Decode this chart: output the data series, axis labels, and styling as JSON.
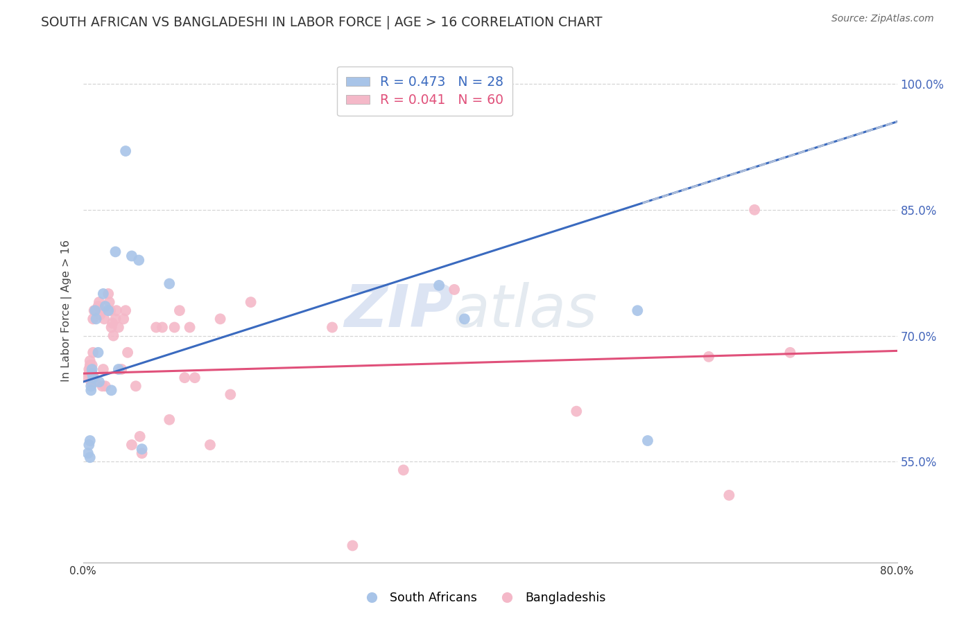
{
  "title": "SOUTH AFRICAN VS BANGLADESHI IN LABOR FORCE | AGE > 16 CORRELATION CHART",
  "source": "Source: ZipAtlas.com",
  "ylabel": "In Labor Force | Age > 16",
  "xlim": [
    0.0,
    0.8
  ],
  "ylim": [
    0.43,
    1.03
  ],
  "xticks": [
    0.0,
    0.2,
    0.4,
    0.6,
    0.8
  ],
  "xtick_labels": [
    "0.0%",
    "",
    "",
    "",
    "80.0%"
  ],
  "ytick_labels": [
    "55.0%",
    "70.0%",
    "85.0%",
    "100.0%"
  ],
  "yticks": [
    0.55,
    0.7,
    0.85,
    1.0
  ],
  "background_color": "#ffffff",
  "grid_color": "#cccccc",
  "watermark_zip": "ZIP",
  "watermark_atlas": "atlas",
  "legend_R1": "R = 0.473",
  "legend_N1": "N = 28",
  "legend_R2": "R = 0.041",
  "legend_N2": "N = 60",
  "blue_scatter_color": "#a8c4e8",
  "pink_scatter_color": "#f4b8c8",
  "blue_line_color": "#3a6abf",
  "pink_line_color": "#e0507a",
  "dashed_line_color": "#aabbd8",
  "right_tick_color": "#4466bb",
  "blue_line_x0": 0.0,
  "blue_line_y0": 0.645,
  "blue_line_x1": 0.8,
  "blue_line_y1": 0.955,
  "pink_line_x0": 0.0,
  "pink_line_y0": 0.655,
  "pink_line_x1": 0.8,
  "pink_line_y1": 0.682,
  "dash_line_x0": 0.55,
  "dash_line_y0": 0.858,
  "dash_line_x1": 0.8,
  "dash_line_y1": 0.955,
  "south_african_x": [
    0.005,
    0.006,
    0.007,
    0.007,
    0.008,
    0.008,
    0.009,
    0.009,
    0.01,
    0.012,
    0.013,
    0.015,
    0.016,
    0.02,
    0.022,
    0.025,
    0.028,
    0.032,
    0.035,
    0.042,
    0.048,
    0.055,
    0.058,
    0.085,
    0.35,
    0.375,
    0.545,
    0.555
  ],
  "south_african_y": [
    0.56,
    0.57,
    0.555,
    0.575,
    0.635,
    0.64,
    0.655,
    0.66,
    0.65,
    0.73,
    0.72,
    0.68,
    0.645,
    0.75,
    0.735,
    0.73,
    0.635,
    0.8,
    0.66,
    0.92,
    0.795,
    0.79,
    0.565,
    0.762,
    0.76,
    0.72,
    0.73,
    0.575
  ],
  "bangladeshi_x": [
    0.005,
    0.006,
    0.006,
    0.007,
    0.007,
    0.008,
    0.008,
    0.009,
    0.009,
    0.01,
    0.01,
    0.011,
    0.011,
    0.012,
    0.015,
    0.016,
    0.017,
    0.018,
    0.019,
    0.02,
    0.021,
    0.022,
    0.025,
    0.026,
    0.027,
    0.028,
    0.029,
    0.03,
    0.032,
    0.033,
    0.035,
    0.038,
    0.04,
    0.042,
    0.044,
    0.048,
    0.052,
    0.056,
    0.058,
    0.072,
    0.078,
    0.085,
    0.09,
    0.095,
    0.1,
    0.105,
    0.11,
    0.125,
    0.135,
    0.145,
    0.165,
    0.245,
    0.265,
    0.315,
    0.365,
    0.485,
    0.615,
    0.635,
    0.66,
    0.695
  ],
  "bangladeshi_y": [
    0.65,
    0.66,
    0.655,
    0.665,
    0.67,
    0.645,
    0.66,
    0.665,
    0.655,
    0.68,
    0.72,
    0.73,
    0.65,
    0.645,
    0.735,
    0.74,
    0.725,
    0.73,
    0.64,
    0.66,
    0.72,
    0.64,
    0.75,
    0.74,
    0.73,
    0.71,
    0.715,
    0.7,
    0.72,
    0.73,
    0.71,
    0.66,
    0.72,
    0.73,
    0.68,
    0.57,
    0.64,
    0.58,
    0.56,
    0.71,
    0.71,
    0.6,
    0.71,
    0.73,
    0.65,
    0.71,
    0.65,
    0.57,
    0.72,
    0.63,
    0.74,
    0.71,
    0.45,
    0.54,
    0.755,
    0.61,
    0.675,
    0.51,
    0.85,
    0.68
  ]
}
